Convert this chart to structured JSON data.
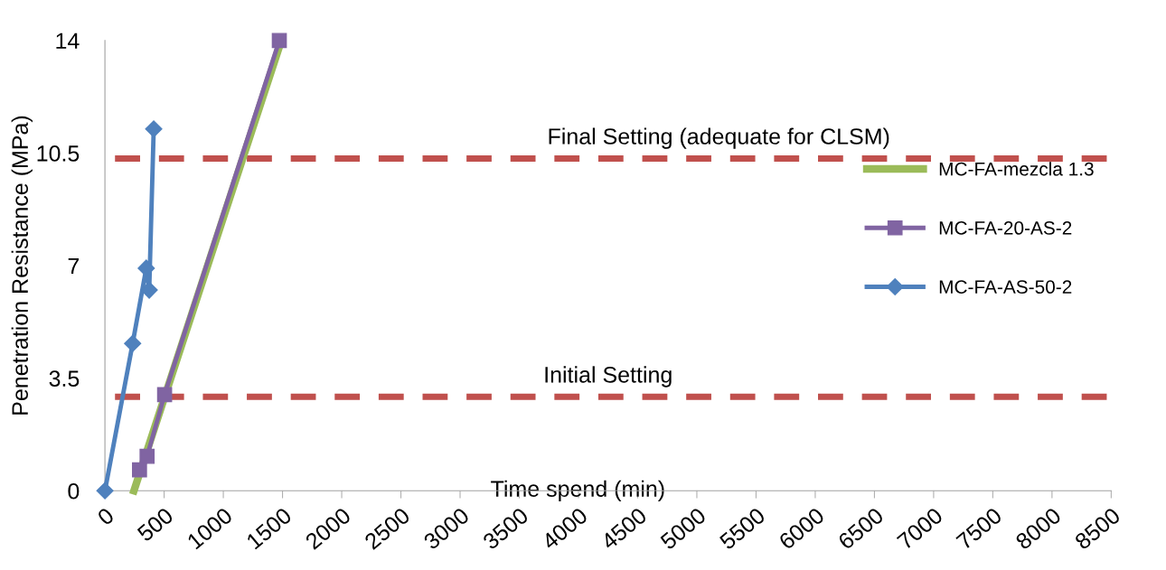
{
  "chart_data": {
    "type": "line",
    "xlabel": "Time spend (min)",
    "ylabel": "Penetration Resistance (MPa)",
    "xlim": [
      0,
      8500
    ],
    "xticks": [
      0,
      500,
      1000,
      1500,
      2000,
      2500,
      3000,
      3500,
      4000,
      4500,
      5000,
      5500,
      6000,
      6500,
      7000,
      7500,
      8000,
      8500
    ],
    "ylim": [
      0,
      14
    ],
    "yticks": [
      0,
      3.5,
      7,
      10.5,
      14
    ],
    "legend": "right",
    "grid": false,
    "series": [
      {
        "name": "MC-FA-mezcla 1.3",
        "color": "#9bbb59",
        "marker": "none",
        "x": [
          245,
          1490
        ],
        "values": [
          0,
          14
        ]
      },
      {
        "name": "MC-FA-20-AS-2",
        "color": "#8064a2",
        "marker": "square",
        "x": [
          292,
          356,
          504,
          1473
        ],
        "values": [
          0.65,
          1.07,
          2.99,
          14
        ]
      },
      {
        "name": "MC-FA-AS-50-2",
        "color": "#4f81bd",
        "marker": "diamond",
        "x": [
          0,
          234,
          349,
          374,
          412
        ],
        "values": [
          0,
          4.58,
          6.92,
          6.24,
          11.25
        ]
      }
    ],
    "ref_lines": [
      {
        "axis": "y",
        "value": 10.33,
        "label": "Final Setting (adequate for CLSM)",
        "color": "#c0504d",
        "line_style": "dashed"
      },
      {
        "axis": "y",
        "value": 2.92,
        "label": "Initial Setting",
        "color": "#c0504d",
        "line_style": "dashed"
      }
    ]
  }
}
